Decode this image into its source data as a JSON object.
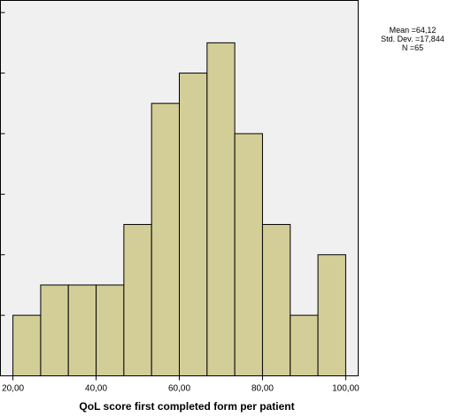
{
  "chart_data": {
    "type": "bar",
    "title": "",
    "xlabel": "QoL score first completed form per patient",
    "ylabel": "",
    "bin_edges": [
      20,
      26.67,
      33.33,
      40,
      46.67,
      53.33,
      60,
      66.67,
      73.33,
      80,
      86.67,
      93.33,
      100
    ],
    "values": [
      2,
      3,
      3,
      3,
      5,
      9,
      10,
      11,
      8,
      5,
      2,
      4
    ],
    "xlim": [
      17,
      103
    ],
    "ylim": [
      0,
      12.4
    ],
    "xticks": [
      20,
      40,
      60,
      80,
      100
    ],
    "xtick_labels": [
      "20,00",
      "40,00",
      "60,00",
      "80,00",
      "100,00"
    ],
    "yticks": [
      2,
      4,
      6,
      8,
      10,
      12
    ],
    "grid": false,
    "legend": "none",
    "stats": {
      "mean": "Mean =64,12",
      "std": "Std. Dev. =17,844",
      "n": "N =65"
    },
    "colors": {
      "bar_fill": "#d3ce97",
      "plot_background": "#f0f0f0"
    }
  }
}
